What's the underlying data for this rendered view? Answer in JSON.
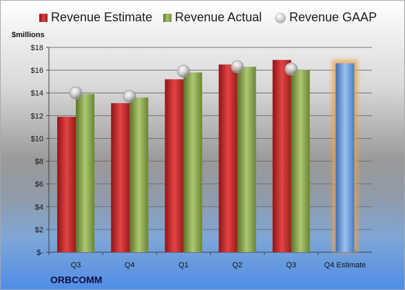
{
  "legend": {
    "estimate": "Revenue Estimate",
    "actual": "Revenue Actual",
    "gaap": "Revenue GAAP"
  },
  "units_label": "$millions",
  "brand": "ORBCOMM",
  "chart_data": {
    "type": "bar",
    "ylabel": "$millions",
    "ylim": [
      0,
      18
    ],
    "yticks": [
      0,
      2,
      4,
      6,
      8,
      10,
      12,
      14,
      16,
      18
    ],
    "ytick_labels": [
      "$-",
      "$2",
      "$4",
      "$6",
      "$8",
      "$10",
      "$12",
      "$14",
      "$16",
      "$18"
    ],
    "categories": [
      "Q3",
      "Q4",
      "Q1",
      "Q2",
      "Q3",
      "Q4 Estimate"
    ],
    "series": [
      {
        "name": "Revenue Estimate",
        "values": [
          11.9,
          13.1,
          15.2,
          16.5,
          16.9,
          16.6
        ]
      },
      {
        "name": "Revenue Actual",
        "values": [
          13.9,
          13.6,
          15.8,
          16.3,
          16.0,
          null
        ]
      },
      {
        "name": "Revenue GAAP",
        "values": [
          14.0,
          13.7,
          15.9,
          16.3,
          16.1,
          null
        ]
      }
    ],
    "grid": true,
    "legend_position": "top",
    "colors": {
      "estimate": "#c0282a",
      "actual": "#8aa84a",
      "gaap": "#c8c8c8",
      "estimate_highlight": "#6f9fd8",
      "highlight_glow": "#f0a040"
    }
  }
}
